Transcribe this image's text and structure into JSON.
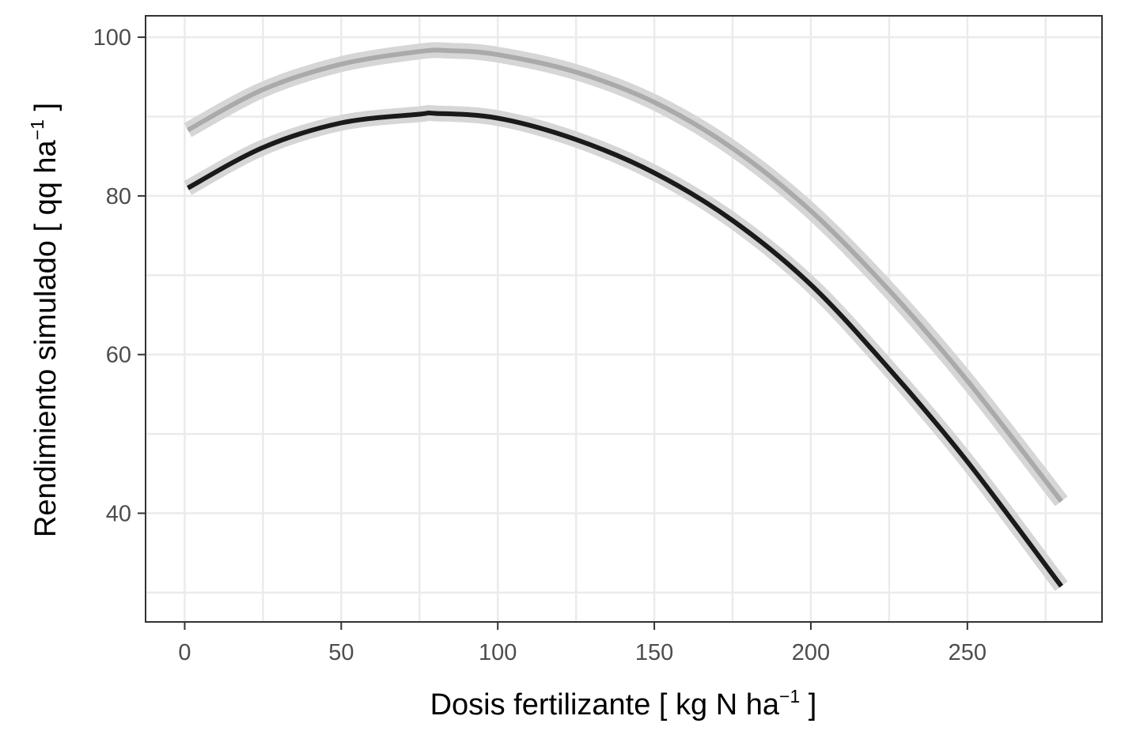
{
  "chart_data": {
    "type": "line",
    "xlabel": {
      "prefix": "Dosis fertilizante [ kg N ha",
      "superscript": "−1",
      "suffix": " ]"
    },
    "ylabel": {
      "prefix": "Rendimiento simulado [ qq ha",
      "superscript": "−1",
      "suffix": " ]"
    },
    "xlim": [
      -12.5,
      293
    ],
    "ylim": [
      26.3,
      102.7
    ],
    "xticks": [
      0,
      50,
      100,
      150,
      200,
      250
    ],
    "yticks": [
      40,
      60,
      80,
      100
    ],
    "grid": true,
    "legend": "none",
    "series": [
      {
        "color": "#aaaaaa",
        "band_color": "#d6d6d6",
        "x": [
          1,
          25,
          50,
          75,
          85,
          100,
          125,
          150,
          175,
          200,
          225,
          250,
          280
        ],
        "y": [
          88.3,
          93.4,
          96.6,
          98.2,
          98.3,
          97.8,
          95.6,
          91.8,
          86.0,
          78.1,
          68.1,
          56.7,
          41.5
        ]
      },
      {
        "color": "#1a1a1a",
        "band_color": "#d6d6d6",
        "x": [
          1,
          25,
          50,
          75,
          80,
          100,
          125,
          150,
          175,
          200,
          225,
          250,
          280
        ],
        "y": [
          81.0,
          86.1,
          89.2,
          90.3,
          90.4,
          89.8,
          87.1,
          82.9,
          76.9,
          68.8,
          58.2,
          46.5,
          30.8
        ]
      }
    ]
  }
}
